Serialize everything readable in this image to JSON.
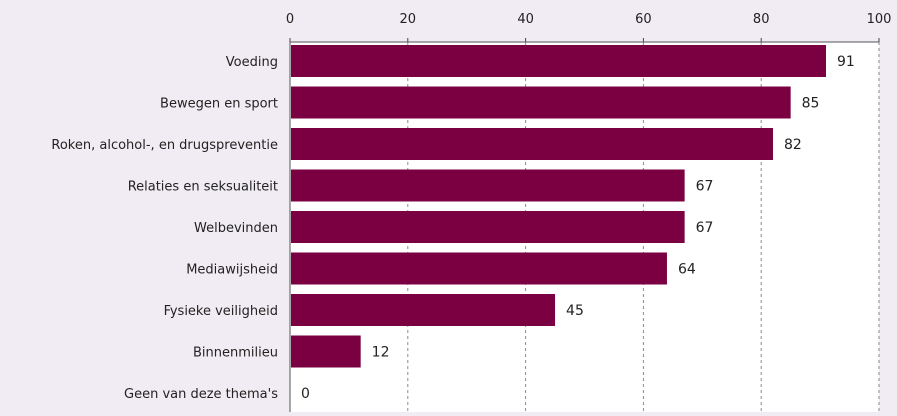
{
  "chart_data": {
    "type": "bar",
    "orientation": "horizontal",
    "categories": [
      "Voeding",
      "Bewegen en sport",
      "Roken, alcohol-, en drugspreventie",
      "Relaties en seksualiteit",
      "Welbevinden",
      "Mediawijsheid",
      "Fysieke veiligheid",
      "Binnenmilieu",
      "Geen van deze thema's"
    ],
    "values": [
      91,
      85,
      82,
      67,
      67,
      64,
      45,
      12,
      0
    ],
    "value_labels": [
      "91",
      "85",
      "82",
      "67",
      "67",
      "64",
      "45",
      "12",
      "0"
    ],
    "xlim": [
      0,
      100
    ],
    "xticks": [
      0,
      20,
      40,
      60,
      80,
      100
    ],
    "xtick_labels": [
      "0",
      "20",
      "40",
      "60",
      "80",
      "100"
    ],
    "x_axis_position": "top",
    "grid": "vertical dashed",
    "legend": "none",
    "bar_color": "#7b0041",
    "background_color": "#f1ecf3",
    "title": "",
    "xlabel": "",
    "ylabel": ""
  }
}
